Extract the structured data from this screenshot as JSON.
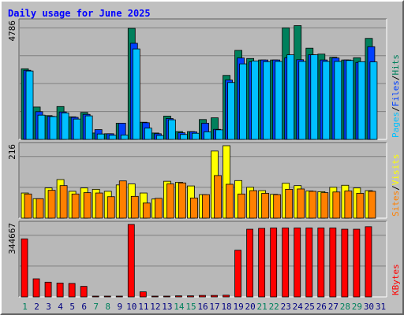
{
  "colors": {
    "hits": "#00805c",
    "files": "#0040ff",
    "pages": "#00c0ff",
    "visits": "#ffff00",
    "sites": "#ff8000",
    "kbytes": "#ff0000",
    "weekday_label": "#00805c",
    "normal_label": "#000080",
    "background": "#c0c0c0",
    "panel": "#b8b8b8",
    "grid": "#808080"
  },
  "chart_data": {
    "title": "Daily usage for June 2025",
    "type": "bar",
    "x_labels": [
      "1",
      "2",
      "3",
      "4",
      "5",
      "6",
      "7",
      "8",
      "9",
      "10",
      "11",
      "12",
      "13",
      "14",
      "15",
      "16",
      "17",
      "18",
      "19",
      "20",
      "21",
      "22",
      "23",
      "24",
      "25",
      "26",
      "27",
      "28",
      "29",
      "30",
      "31"
    ],
    "green_days": [
      1,
      7,
      8,
      14,
      15,
      21,
      22,
      28,
      29
    ],
    "panels": [
      {
        "name": "hits-files-pages",
        "ymax": 4786,
        "ymax_label": "4786",
        "right_label": [
          "Pages",
          "/",
          "Files",
          "/",
          "Hits"
        ],
        "series": [
          {
            "name": "Hits",
            "values": [
              2880,
              1320,
              970,
              1340,
              920,
              1100,
              260,
              230,
              660,
              4530,
              700,
              260,
              950,
              320,
              320,
              810,
              880,
              2610,
              3630,
              3300,
              3240,
              3240,
              4550,
              4640,
              3720,
              3480,
              3350,
              3240,
              3330,
              4120,
              0
            ]
          },
          {
            "name": "Files",
            "values": [
              2820,
              1130,
              940,
              1120,
              900,
              1020,
              400,
              230,
              660,
              3920,
              680,
              230,
              850,
              270,
              310,
              660,
              410,
              2420,
              3320,
              3160,
              3240,
              3240,
              3330,
              3250,
              3450,
              3240,
              3320,
              3240,
              3140,
              3780,
              0
            ]
          },
          {
            "name": "Pages",
            "values": [
              2790,
              990,
              930,
              1080,
              830,
              960,
              220,
              170,
              180,
              3690,
              460,
              160,
              800,
              200,
              250,
              310,
              390,
              2320,
              3080,
              3200,
              3170,
              3180,
              3450,
              3180,
              3450,
              3180,
              3180,
              3220,
              3170,
              3160,
              0
            ]
          }
        ]
      },
      {
        "name": "visits-sites",
        "ymax": 216,
        "ymax_label": "216",
        "right_label": [
          "Sites",
          "/",
          "Visits"
        ],
        "series": [
          {
            "name": "Visits",
            "values": [
              75,
              58,
              90,
              115,
              80,
              90,
              86,
              80,
              99,
              102,
              75,
              57,
              110,
              107,
              96,
              70,
              200,
              216,
              112,
              92,
              82,
              71,
              104,
              97,
              81,
              79,
              92,
              98,
              90,
              82,
              0
            ]
          },
          {
            "name": "Sites",
            "values": [
              72,
              58,
              83,
              97,
              72,
              76,
              75,
              64,
              111,
              65,
              45,
              59,
              102,
              105,
              60,
              70,
              127,
              101,
              72,
              82,
              74,
              70,
              86,
              87,
              80,
              76,
              78,
              81,
              74,
              80,
              0
            ]
          }
        ]
      },
      {
        "name": "kbytes",
        "ymax": 344667,
        "ymax_label": "344667",
        "right_label": [
          "KBytes"
        ],
        "series": [
          {
            "name": "KBytes",
            "values": [
              276000,
              86000,
              70000,
              66000,
              64000,
              50000,
              3000,
              3000,
              3000,
              344667,
              24000,
              3000,
              3000,
              5000,
              5000,
              7000,
              7000,
              8000,
              222000,
              322000,
              326000,
              328000,
              328000,
              328000,
              328000,
              328000,
              328000,
              322000,
              322000,
              334000,
              0
            ]
          }
        ]
      }
    ]
  }
}
